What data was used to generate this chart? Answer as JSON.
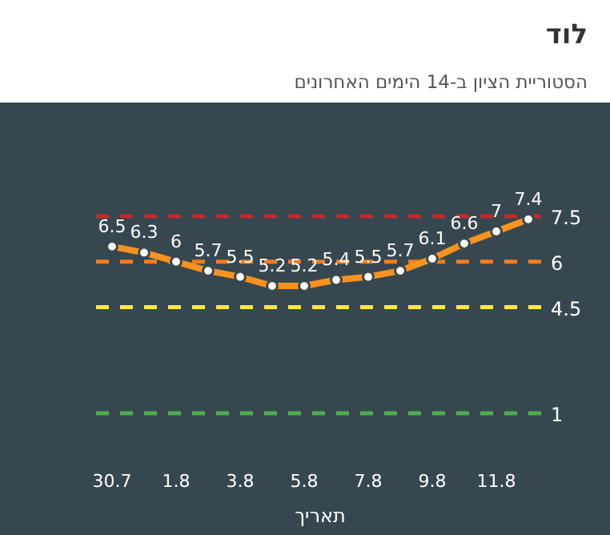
{
  "chart_data": {
    "type": "line",
    "title": "לוד",
    "subtitle": "הסטוריית הציון ב-14 הימים האחרונים",
    "xlabel": "תאריך",
    "categories": [
      "30.7",
      null,
      "1.8",
      null,
      "3.8",
      null,
      "5.8",
      null,
      "7.8",
      null,
      "9.8",
      null,
      "11.8",
      null
    ],
    "series": [
      {
        "color": "#f7931e",
        "values": [
          6.5,
          6.3,
          6,
          5.7,
          5.5,
          5.2,
          5.2,
          5.4,
          5.5,
          5.7,
          6.1,
          6.6,
          7,
          7.4
        ]
      }
    ],
    "data_labels": true,
    "marker": "circle",
    "line_style": "solid",
    "tick_labels": "x",
    "ref_lines": [
      {
        "axis": "y",
        "value": 7.5,
        "label": "7.5",
        "color": "#c62828",
        "line_style": "dashed"
      },
      {
        "axis": "y",
        "value": 6,
        "label": "6",
        "color": "#f57c20",
        "line_style": "dashed"
      },
      {
        "axis": "y",
        "value": 4.5,
        "label": "4.5",
        "color": "#ffeb3b",
        "line_style": "dashed"
      },
      {
        "axis": "y",
        "value": 1,
        "label": "1",
        "color": "#4caf50",
        "line_style": "dashed"
      }
    ]
  }
}
